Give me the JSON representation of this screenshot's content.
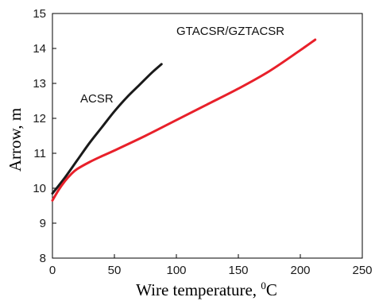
{
  "chart_data": {
    "type": "line",
    "xlabel": "Wire temperature, ",
    "xlabel_unit_sup": "0",
    "xlabel_unit": "C",
    "ylabel": "Arrow, m",
    "xlim": [
      0,
      250
    ],
    "ylim": [
      8,
      15
    ],
    "x_ticks": [
      "0",
      "50",
      "100",
      "150",
      "200",
      "250"
    ],
    "y_ticks": [
      "8",
      "9",
      "10",
      "11",
      "12",
      "13",
      "14",
      "15"
    ],
    "grid": false,
    "series": [
      {
        "name": "ACSR",
        "color": "#1a1a1a",
        "x": [
          0,
          10,
          20,
          30,
          40,
          50,
          60,
          70,
          80,
          88
        ],
        "y": [
          9.85,
          10.3,
          10.8,
          11.3,
          11.75,
          12.2,
          12.6,
          12.95,
          13.3,
          13.55
        ]
      },
      {
        "name": "GTACSR/GZTACSR",
        "color": "#e8202a",
        "x": [
          0,
          5,
          10,
          15,
          20,
          30,
          40,
          50,
          75,
          100,
          125,
          150,
          175,
          200,
          212
        ],
        "y": [
          9.65,
          9.95,
          10.2,
          10.4,
          10.55,
          10.75,
          10.92,
          11.08,
          11.5,
          11.95,
          12.4,
          12.85,
          13.35,
          13.95,
          14.25
        ]
      }
    ]
  }
}
